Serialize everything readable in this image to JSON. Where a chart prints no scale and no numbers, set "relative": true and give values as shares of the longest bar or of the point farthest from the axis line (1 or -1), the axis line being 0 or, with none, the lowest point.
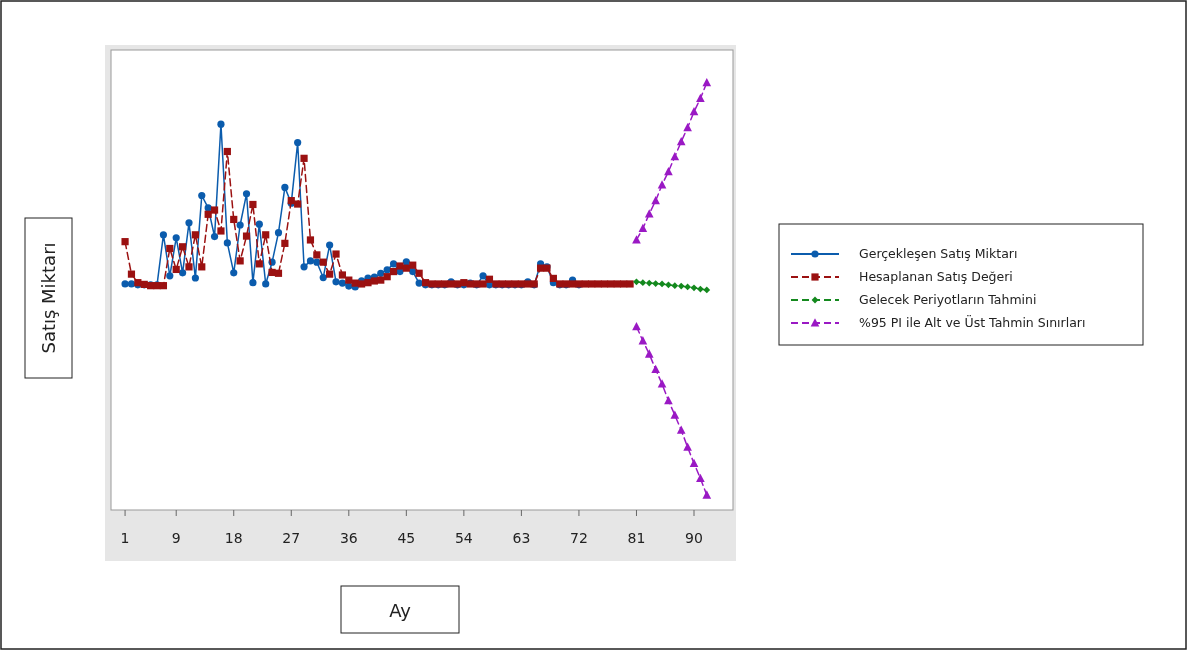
{
  "chart_data": {
    "type": "line",
    "xlabel": "Ay",
    "ylabel": "Satış Miktarı",
    "relative": true,
    "xlim": [
      -1.2,
      96.1
    ],
    "xticks": [
      1,
      9,
      18,
      27,
      36,
      45,
      54,
      63,
      72,
      81,
      90
    ],
    "grid": false,
    "legend": "right",
    "series": [
      {
        "name": "Gerçekleşen Satış Miktarı",
        "color": "#0b5cad",
        "marker": "circle",
        "line_style": "solid",
        "x": [
          1,
          2,
          3,
          4,
          5,
          6,
          7,
          8,
          9,
          10,
          11,
          12,
          13,
          14,
          15,
          16,
          17,
          18,
          19,
          20,
          21,
          22,
          23,
          24,
          25,
          26,
          27,
          28,
          29,
          30,
          31,
          32,
          33,
          34,
          35,
          36,
          37,
          38,
          39,
          40,
          41,
          42,
          43,
          44,
          45,
          46,
          47,
          48,
          49,
          50,
          51,
          52,
          53,
          54,
          55,
          56,
          57,
          58,
          59,
          60,
          61,
          62,
          63,
          64,
          65,
          66,
          67,
          68,
          69,
          70,
          71,
          72
        ],
        "values": [
          0.529,
          0.529,
          0.527,
          0.527,
          0.527,
          0.527,
          0.644,
          0.548,
          0.637,
          0.555,
          0.672,
          0.543,
          0.736,
          0.707,
          0.64,
          0.903,
          0.625,
          0.555,
          0.667,
          0.74,
          0.532,
          0.669,
          0.529,
          0.58,
          0.649,
          0.755,
          0.718,
          0.86,
          0.569,
          0.583,
          0.58,
          0.544,
          0.62,
          0.534,
          0.531,
          0.524,
          0.522,
          0.536,
          0.543,
          0.545,
          0.554,
          0.562,
          0.576,
          0.558,
          0.581,
          0.558,
          0.531,
          0.527,
          0.527,
          0.527,
          0.527,
          0.534,
          0.527,
          0.527,
          0.531,
          0.527,
          0.548,
          0.527,
          0.527,
          0.527,
          0.527,
          0.527,
          0.527,
          0.534,
          0.527,
          0.576,
          0.569,
          0.532,
          0.527,
          0.527,
          0.538,
          0.527
        ]
      },
      {
        "name": "Hesaplanan Satış Değeri",
        "color": "#9b1111",
        "marker": "square",
        "line_style": "dashed",
        "x": [
          1,
          2,
          3,
          4,
          5,
          6,
          7,
          8,
          9,
          10,
          11,
          12,
          13,
          14,
          15,
          16,
          17,
          18,
          19,
          20,
          21,
          22,
          23,
          24,
          25,
          26,
          27,
          28,
          29,
          30,
          31,
          32,
          33,
          34,
          35,
          36,
          37,
          38,
          39,
          40,
          41,
          42,
          43,
          44,
          45,
          46,
          47,
          48,
          49,
          50,
          51,
          52,
          53,
          54,
          55,
          56,
          57,
          58,
          59,
          60,
          61,
          62,
          63,
          64,
          65,
          66,
          67,
          68,
          69,
          70,
          71,
          72,
          73,
          74,
          75,
          76,
          77,
          78,
          79,
          80
        ],
        "values": [
          0.628,
          0.552,
          0.532,
          0.528,
          0.525,
          0.525,
          0.525,
          0.612,
          0.563,
          0.616,
          0.569,
          0.644,
          0.569,
          0.692,
          0.702,
          0.653,
          0.839,
          0.68,
          0.583,
          0.641,
          0.715,
          0.576,
          0.644,
          0.556,
          0.554,
          0.624,
          0.724,
          0.716,
          0.823,
          0.632,
          0.597,
          0.58,
          0.552,
          0.599,
          0.55,
          0.538,
          0.531,
          0.529,
          0.532,
          0.536,
          0.538,
          0.546,
          0.558,
          0.571,
          0.566,
          0.573,
          0.554,
          0.532,
          0.529,
          0.529,
          0.529,
          0.529,
          0.529,
          0.532,
          0.529,
          0.529,
          0.529,
          0.54,
          0.529,
          0.529,
          0.529,
          0.529,
          0.529,
          0.529,
          0.529,
          0.566,
          0.566,
          0.542,
          0.529,
          0.529,
          0.529,
          0.529,
          0.529,
          0.529,
          0.529,
          0.529,
          0.529,
          0.529,
          0.529,
          0.529
        ]
      },
      {
        "name": "Gelecek Periyotların Tahmini",
        "color": "#14891e",
        "marker": "diamond",
        "line_style": "dashed",
        "x": [
          81,
          82,
          83,
          84,
          85,
          86,
          87,
          88,
          89,
          90,
          91,
          92
        ],
        "values": [
          0.534,
          0.532,
          0.531,
          0.53,
          0.529,
          0.527,
          0.525,
          0.524,
          0.522,
          0.52,
          0.517,
          0.515
        ]
      },
      {
        "name": "%95 PI ile Alt ve Üst Tahmin Sınırları",
        "color": "#9a19c4",
        "marker": "triangle",
        "line_style": "dashed",
        "x": [
          81,
          82,
          83,
          84,
          85,
          86,
          87,
          88,
          89,
          90,
          91,
          92
        ],
        "values": [
          0.632,
          0.659,
          0.693,
          0.724,
          0.761,
          0.792,
          0.827,
          0.862,
          0.895,
          0.932,
          0.963,
          1.0
        ]
      },
      {
        "color": "#9a19c4",
        "marker": "triangle",
        "line_style": "dashed",
        "x": [
          81,
          82,
          83,
          84,
          85,
          86,
          87,
          88,
          89,
          90,
          91,
          92
        ],
        "values": [
          0.429,
          0.396,
          0.365,
          0.329,
          0.295,
          0.256,
          0.222,
          0.187,
          0.147,
          0.109,
          0.074,
          0.035
        ]
      }
    ]
  }
}
